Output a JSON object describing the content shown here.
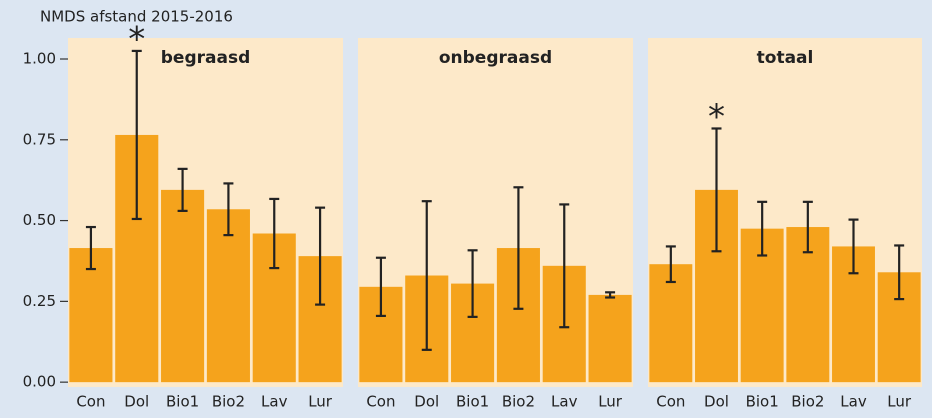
{
  "chart_data": [
    {
      "type": "bar",
      "title": "begraasd",
      "y_label": "NMDS afstand 2015-2016",
      "categories": [
        "Con",
        "Dol",
        "Bio1",
        "Bio2",
        "Lav",
        "Lur"
      ],
      "values": [
        0.415,
        0.765,
        0.595,
        0.535,
        0.46,
        0.39
      ],
      "errors": [
        0.065,
        0.26,
        0.065,
        0.08,
        0.107,
        0.15
      ],
      "annotations": [
        {
          "text": "*",
          "x": "Dol"
        }
      ],
      "color": "#f5a31c",
      "ylim": [
        -0.015,
        1.065
      ],
      "yticks": [
        {
          "value": 0,
          "label": "0.00"
        },
        {
          "value": 0.25,
          "label": "0.25"
        },
        {
          "value": 0.5,
          "label": "0.50"
        },
        {
          "value": 0.75,
          "label": "0.75"
        },
        {
          "value": 1,
          "label": "1.00"
        }
      ]
    },
    {
      "type": "bar",
      "title": "onbegraasd",
      "categories": [
        "Con",
        "Dol",
        "Bio1",
        "Bio2",
        "Lav",
        "Lur"
      ],
      "values": [
        0.295,
        0.33,
        0.305,
        0.415,
        0.36,
        0.27
      ],
      "errors": [
        0.09,
        0.23,
        0.103,
        0.188,
        0.19,
        0.008
      ],
      "color": "#f5a31c",
      "ylim": [
        -0.015,
        1.065
      ]
    },
    {
      "type": "bar",
      "title": "totaal",
      "categories": [
        "Con",
        "Dol",
        "Bio1",
        "Bio2",
        "Lav",
        "Lur"
      ],
      "values": [
        0.365,
        0.595,
        0.475,
        0.48,
        0.42,
        0.34
      ],
      "errors": [
        0.055,
        0.19,
        0.083,
        0.078,
        0.083,
        0.083
      ],
      "annotations": [
        {
          "text": "*",
          "x": "Dol"
        }
      ],
      "color": "#f5a31c",
      "ylim": [
        -0.015,
        1.065
      ]
    }
  ]
}
